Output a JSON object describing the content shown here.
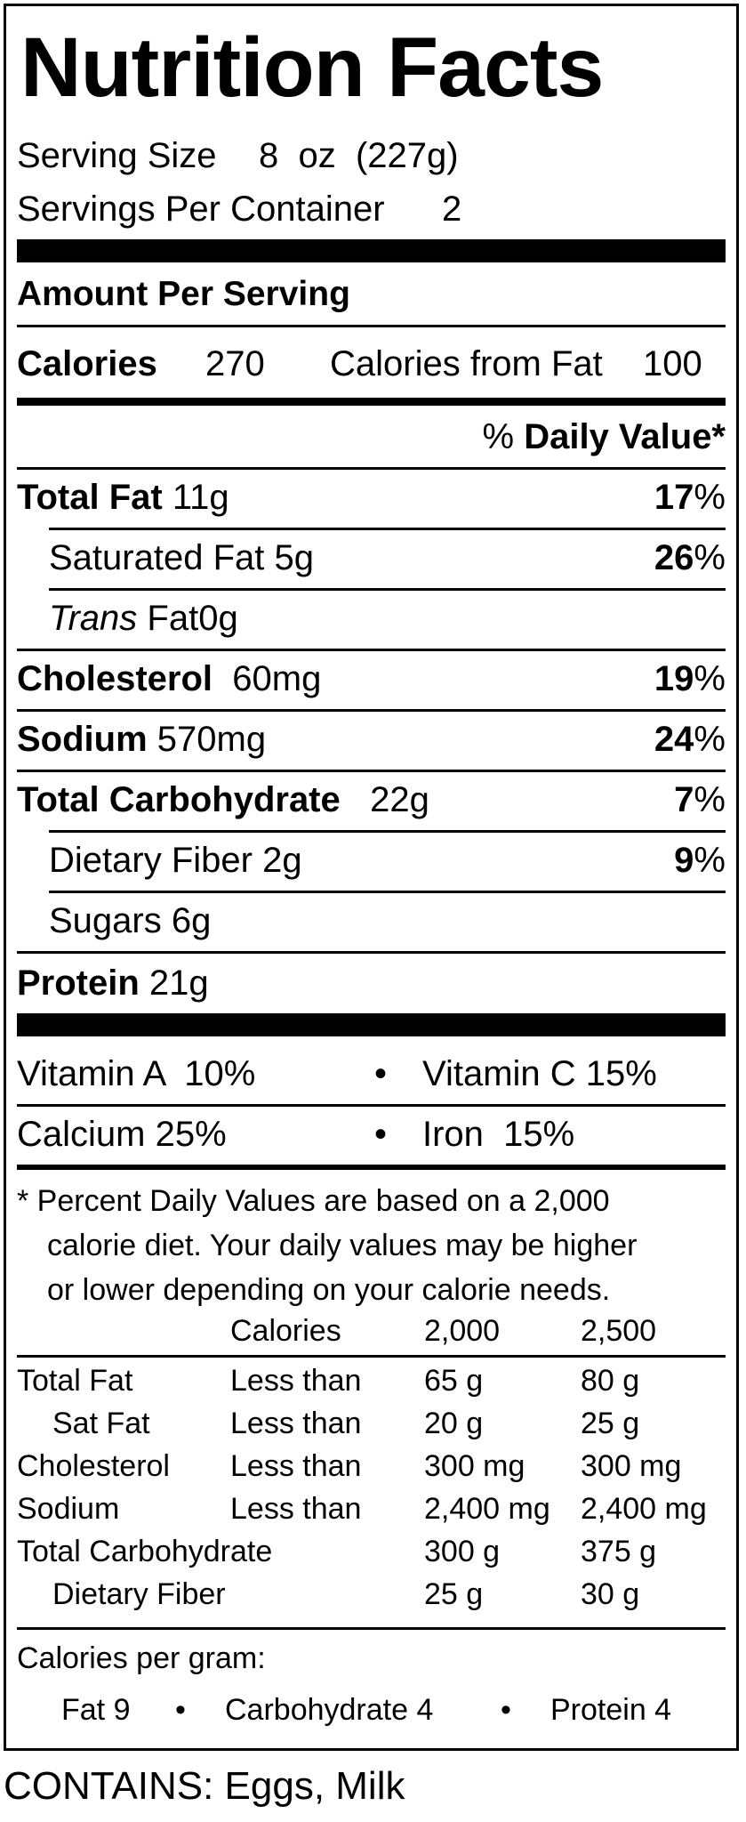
{
  "title": "Nutrition Facts",
  "serving": {
    "size_label": "Serving Size",
    "size_value": "8  oz  (227g)",
    "per_container_label": "Servings Per Container",
    "per_container_value": "2"
  },
  "amount_per_serving": "Amount Per Serving",
  "calories": {
    "label": "Calories",
    "value": "270",
    "from_fat_label": "Calories from Fat",
    "from_fat_value": "100"
  },
  "daily_value_header": {
    "pct": "%",
    "label": "Daily Value*"
  },
  "nutrients": {
    "total_fat": {
      "label": "Total Fat",
      "amount": "11g",
      "dv": "17",
      "pct": "%"
    },
    "saturated_fat": {
      "label": "Saturated Fat",
      "amount": "5g",
      "dv": "26",
      "pct": "%"
    },
    "trans_fat": {
      "label_italic": "Trans",
      "label": "Fat",
      "amount": "0g"
    },
    "cholesterol": {
      "label": "Cholesterol",
      "amount": "60mg",
      "dv": "19",
      "pct": "%"
    },
    "sodium": {
      "label": "Sodium",
      "amount": "570mg",
      "dv": "24",
      "pct": "%"
    },
    "total_carb": {
      "label": "Total Carbohydrate",
      "amount": "22g",
      "dv": "7",
      "pct": "%"
    },
    "dietary_fiber": {
      "label": "Dietary Fiber",
      "amount": "2g",
      "dv": "9",
      "pct": "%"
    },
    "sugars": {
      "label": "Sugars",
      "amount": "6g"
    },
    "protein": {
      "label": "Protein",
      "amount": "21g"
    }
  },
  "vitamins": {
    "row1": {
      "left": "Vitamin A  10%",
      "bullet": "•",
      "right": "Vitamin C 15%"
    },
    "row2": {
      "left": "Calcium 25%",
      "bullet": "•",
      "right": "Iron  15%"
    }
  },
  "footnote": {
    "line1": "* Percent Daily Values are based on a 2,000",
    "line2": "calorie diet. Your daily values may be higher",
    "line3": "or lower depending on your calorie needs."
  },
  "dv_table": {
    "header": {
      "calories": "Calories",
      "c2000": "2,000",
      "c2500": "2,500"
    },
    "rows": [
      {
        "name": "Total Fat",
        "qual": "Less than",
        "v1": "65 g",
        "v2": "80 g"
      },
      {
        "name": "Sat Fat",
        "qual": "Less than",
        "v1": "20 g",
        "v2": "25 g"
      },
      {
        "name": "Cholesterol",
        "qual": "Less than",
        "v1": "300 mg",
        "v2": "300 mg"
      },
      {
        "name": "Sodium",
        "qual": "Less than",
        "v1": "2,400 mg",
        "v2": "2,400 mg"
      },
      {
        "name": "Total Carbohydrate",
        "qual": "",
        "v1": "300 g",
        "v2": "375 g"
      },
      {
        "name": "Dietary Fiber",
        "qual": "",
        "v1": "25 g",
        "v2": "30 g"
      }
    ]
  },
  "calories_per_gram": {
    "label": "Calories per gram:",
    "fat": "Fat 9",
    "carb": "Carbohydrate 4",
    "protein": "Protein 4",
    "bullet": "•"
  },
  "contains": "CONTAINS: Eggs, Milk"
}
